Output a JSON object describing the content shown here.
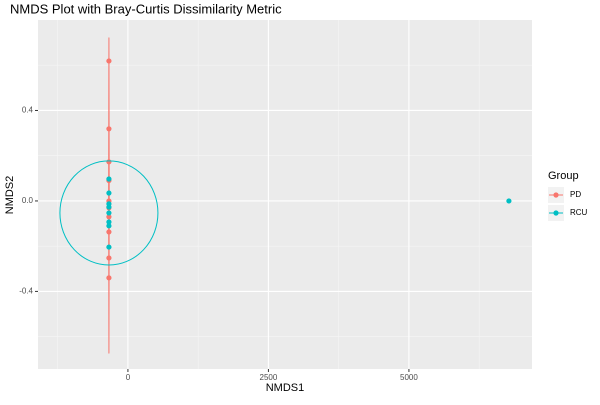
{
  "chart_data": {
    "type": "scatter",
    "title": "NMDS Plot with Bray-Curtis Dissimilarity Metric",
    "x_label": "NMDS1",
    "y_label": "NMDS2",
    "legend_title": "Group",
    "legend_position": "right",
    "xlim": [
      -1600,
      7190
    ],
    "ylim": [
      -0.743,
      0.8
    ],
    "xticks": [
      0,
      2500,
      5000
    ],
    "yticks": [
      -0.4,
      {
        "value": 0,
        "label": "0.0"
      },
      0.4
    ],
    "x_minor_ticks": [
      -1250,
      1250,
      3750,
      6250
    ],
    "y_minor_ticks": [
      -0.6,
      -0.2,
      0.2,
      0.6
    ],
    "grid": true,
    "series": [
      {
        "name": "PD",
        "color": "#F8766D",
        "x": [
          -338,
          -338,
          -338,
          -338,
          -338,
          -338,
          -338,
          -338,
          -338,
          -338
        ],
        "values": [
          0.619,
          0.319,
          0.173,
          0.09,
          0.0,
          -0.03,
          -0.07,
          -0.137,
          -0.252,
          -0.34
        ],
        "ellipse": {
          "cx": -338,
          "cy": 0.024,
          "rx": 5,
          "ry": 0.697
        }
      },
      {
        "name": "RCU",
        "color": "#00BFC4",
        "x": [
          -338,
          -338,
          -338,
          -338,
          -338,
          -338,
          -338,
          -338,
          6779
        ],
        "values": [
          0.097,
          0.035,
          -0.013,
          -0.027,
          -0.053,
          -0.093,
          -0.11,
          -0.204,
          0.0
        ],
        "ellipse": {
          "cx": -338,
          "cy": -0.053,
          "rx": 872,
          "ry": 0.23
        }
      }
    ]
  }
}
